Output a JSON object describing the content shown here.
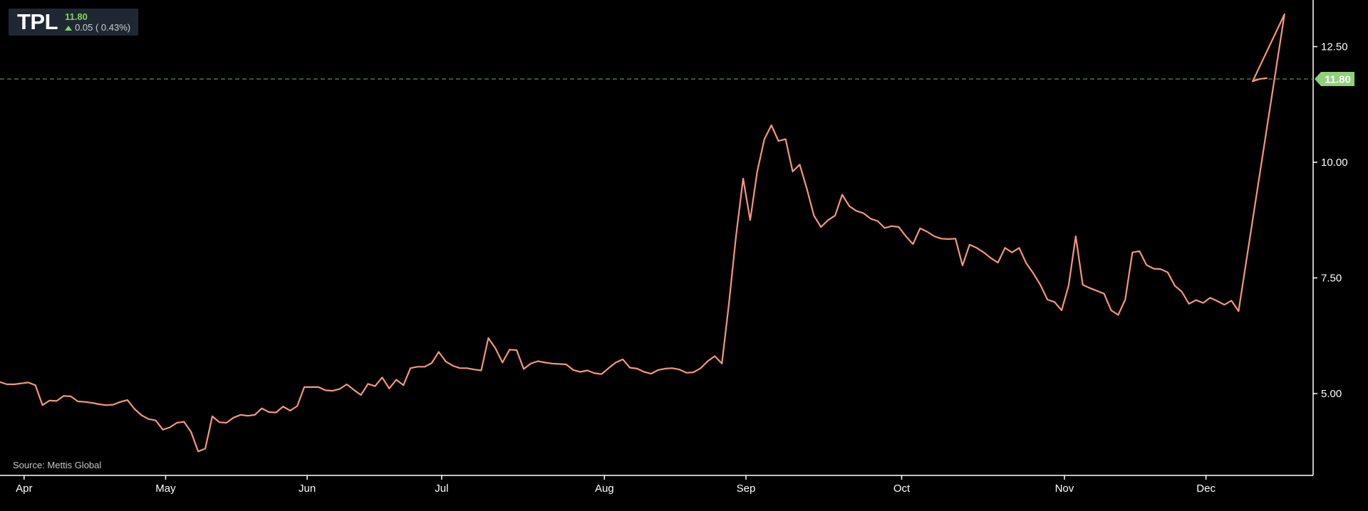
{
  "ticker": {
    "symbol": "TPL",
    "price": "11.80",
    "change": "0.05 ( 0.43%)"
  },
  "source": "Source: Mettis Global",
  "colors": {
    "background": "#000000",
    "line": "#f4977a",
    "up": "#7ed957",
    "current_price_line": "#6fae6f",
    "axis": "#ffffff",
    "ticker_box": "#1f2832"
  },
  "icons": {
    "change_direction": "arrow-up-icon"
  },
  "chart_data": {
    "type": "line",
    "title": "",
    "xlabel": "",
    "ylabel": "",
    "x_ticks": [
      "Apr",
      "May",
      "Jun",
      "Jul",
      "Aug",
      "Sep",
      "Oct",
      "Nov",
      "Dec"
    ],
    "y_ticks": [
      "5.00",
      "7.50",
      "10.00",
      "12.50"
    ],
    "ylim": [
      3.0,
      13.8
    ],
    "y_axis_position": "right",
    "grid": false,
    "current_price": 11.8,
    "current_price_label": "11.80",
    "series": [
      {
        "values": [
          5.25,
          5.2,
          5.2,
          5.22,
          5.24,
          5.18,
          4.75,
          4.85,
          4.84,
          4.95,
          4.94,
          4.83,
          4.82,
          4.8,
          4.77,
          4.75,
          4.76,
          4.82,
          4.86,
          4.67,
          4.53,
          4.45,
          4.42,
          4.22,
          4.27,
          4.37,
          4.39,
          4.17,
          3.75,
          3.81,
          4.51,
          4.38,
          4.37,
          4.48,
          4.54,
          4.52,
          4.54,
          4.68,
          4.6,
          4.59,
          4.72,
          4.63,
          4.73,
          5.14,
          5.14,
          5.14,
          5.07,
          5.06,
          5.1,
          5.2,
          5.08,
          4.97,
          5.21,
          5.16,
          5.35,
          5.11,
          5.3,
          5.18,
          5.55,
          5.58,
          5.58,
          5.66,
          5.9,
          5.69,
          5.6,
          5.55,
          5.55,
          5.52,
          5.5,
          6.2,
          5.98,
          5.67,
          5.95,
          5.94,
          5.53,
          5.65,
          5.7,
          5.67,
          5.65,
          5.64,
          5.63,
          5.51,
          5.47,
          5.5,
          5.44,
          5.42,
          5.55,
          5.67,
          5.74,
          5.56,
          5.54,
          5.47,
          5.43,
          5.51,
          5.54,
          5.55,
          5.52,
          5.45,
          5.46,
          5.55,
          5.7,
          5.81,
          5.65,
          6.95,
          8.4,
          9.65,
          8.75,
          9.8,
          10.5,
          10.8,
          10.46,
          10.5,
          9.8,
          9.95,
          9.43,
          8.85,
          8.6,
          8.75,
          8.85,
          9.3,
          9.05,
          8.95,
          8.9,
          8.78,
          8.73,
          8.58,
          8.62,
          8.6,
          8.4,
          8.23,
          8.57,
          8.5,
          8.4,
          8.35,
          8.34,
          8.35,
          7.77,
          8.22,
          8.15,
          8.05,
          7.93,
          7.83,
          8.15,
          8.05,
          8.15,
          7.82,
          7.6,
          7.35,
          7.03,
          6.98,
          6.8,
          7.34,
          8.4,
          7.35,
          7.28,
          7.22,
          7.16,
          6.8,
          6.7,
          7.03,
          8.05,
          8.08,
          7.78,
          7.7,
          7.69,
          7.62,
          7.33,
          7.2,
          6.94,
          7.02,
          6.96,
          7.07,
          7.0,
          6.92,
          7.01,
          6.78,
          13.2,
          11.75,
          11.8,
          11.82
        ]
      }
    ],
    "x_tick_index": [
      3,
      23,
      43,
      62,
      85,
      105,
      127,
      150,
      170
    ],
    "x_index_exceptions": {
      "176": 181.5
    }
  }
}
